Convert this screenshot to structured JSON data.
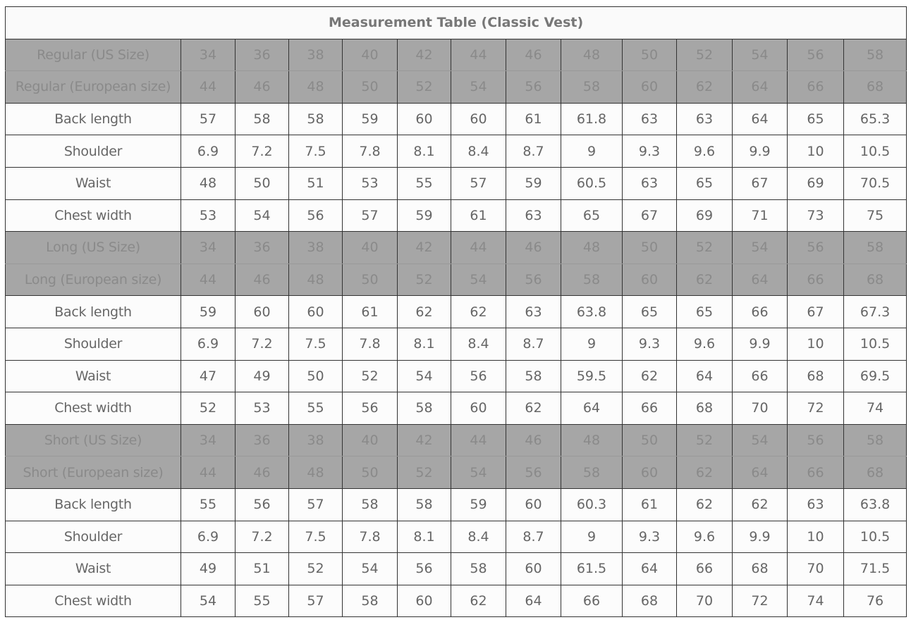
{
  "table": {
    "title": "Measurement Table (Classic Vest)",
    "sections": [
      {
        "rows": [
          {
            "label": "Regular (US Size)",
            "type": "size",
            "values": [
              "34",
              "36",
              "38",
              "40",
              "42",
              "44",
              "46",
              "48",
              "50",
              "52",
              "54",
              "56",
              "58"
            ]
          },
          {
            "label": "Regular (European size)",
            "type": "size",
            "values": [
              "44",
              "46",
              "48",
              "50",
              "52",
              "54",
              "56",
              "58",
              "60",
              "62",
              "64",
              "66",
              "68"
            ]
          },
          {
            "label": "Back length",
            "type": "meas",
            "values": [
              "57",
              "58",
              "58",
              "59",
              "60",
              "60",
              "61",
              "61.8",
              "63",
              "63",
              "64",
              "65",
              "65.3"
            ]
          },
          {
            "label": "Shoulder",
            "type": "meas",
            "values": [
              "6.9",
              "7.2",
              "7.5",
              "7.8",
              "8.1",
              "8.4",
              "8.7",
              "9",
              "9.3",
              "9.6",
              "9.9",
              "10",
              "10.5"
            ]
          },
          {
            "label": "Waist",
            "type": "meas",
            "values": [
              "48",
              "50",
              "51",
              "53",
              "55",
              "57",
              "59",
              "60.5",
              "63",
              "65",
              "67",
              "69",
              "70.5"
            ]
          },
          {
            "label": "Chest width",
            "type": "meas",
            "values": [
              "53",
              "54",
              "56",
              "57",
              "59",
              "61",
              "63",
              "65",
              "67",
              "69",
              "71",
              "73",
              "75"
            ]
          }
        ]
      },
      {
        "rows": [
          {
            "label": "Long (US Size)",
            "type": "size",
            "values": [
              "34",
              "36",
              "38",
              "40",
              "42",
              "44",
              "46",
              "48",
              "50",
              "52",
              "54",
              "56",
              "58"
            ]
          },
          {
            "label": "Long (European size)",
            "type": "size",
            "values": [
              "44",
              "46",
              "48",
              "50",
              "52",
              "54",
              "56",
              "58",
              "60",
              "62",
              "64",
              "66",
              "68"
            ]
          },
          {
            "label": "Back length",
            "type": "meas",
            "values": [
              "59",
              "60",
              "60",
              "61",
              "62",
              "62",
              "63",
              "63.8",
              "65",
              "65",
              "66",
              "67",
              "67.3"
            ]
          },
          {
            "label": "Shoulder",
            "type": "meas",
            "values": [
              "6.9",
              "7.2",
              "7.5",
              "7.8",
              "8.1",
              "8.4",
              "8.7",
              "9",
              "9.3",
              "9.6",
              "9.9",
              "10",
              "10.5"
            ]
          },
          {
            "label": "Waist",
            "type": "meas",
            "values": [
              "47",
              "49",
              "50",
              "52",
              "54",
              "56",
              "58",
              "59.5",
              "62",
              "64",
              "66",
              "68",
              "69.5"
            ]
          },
          {
            "label": "Chest width",
            "type": "meas",
            "values": [
              "52",
              "53",
              "55",
              "56",
              "58",
              "60",
              "62",
              "64",
              "66",
              "68",
              "70",
              "72",
              "74"
            ]
          }
        ]
      },
      {
        "rows": [
          {
            "label": "Short (US Size)",
            "type": "size",
            "values": [
              "34",
              "36",
              "38",
              "40",
              "42",
              "44",
              "46",
              "48",
              "50",
              "52",
              "54",
              "56",
              "58"
            ]
          },
          {
            "label": "Short (European size)",
            "type": "size",
            "values": [
              "44",
              "46",
              "48",
              "50",
              "52",
              "54",
              "56",
              "58",
              "60",
              "62",
              "64",
              "66",
              "68"
            ]
          },
          {
            "label": "Back length",
            "type": "meas",
            "values": [
              "55",
              "56",
              "57",
              "58",
              "58",
              "59",
              "60",
              "60.3",
              "61",
              "62",
              "62",
              "63",
              "63.8"
            ]
          },
          {
            "label": "Shoulder",
            "type": "meas",
            "values": [
              "6.9",
              "7.2",
              "7.5",
              "7.8",
              "8.1",
              "8.4",
              "8.7",
              "9",
              "9.3",
              "9.6",
              "9.9",
              "10",
              "10.5"
            ]
          },
          {
            "label": "Waist",
            "type": "meas",
            "values": [
              "49",
              "51",
              "52",
              "54",
              "56",
              "58",
              "60",
              "61.5",
              "64",
              "66",
              "68",
              "70",
              "71.5"
            ]
          },
          {
            "label": "Chest width",
            "type": "meas",
            "values": [
              "54",
              "55",
              "57",
              "58",
              "60",
              "62",
              "64",
              "66",
              "68",
              "70",
              "72",
              "74",
              "76"
            ]
          }
        ]
      }
    ],
    "colors": {
      "size_row_bg": "#a6a6a6",
      "size_row_text": "#8a8a8a",
      "body_text": "#666666",
      "border": "#333333"
    }
  }
}
